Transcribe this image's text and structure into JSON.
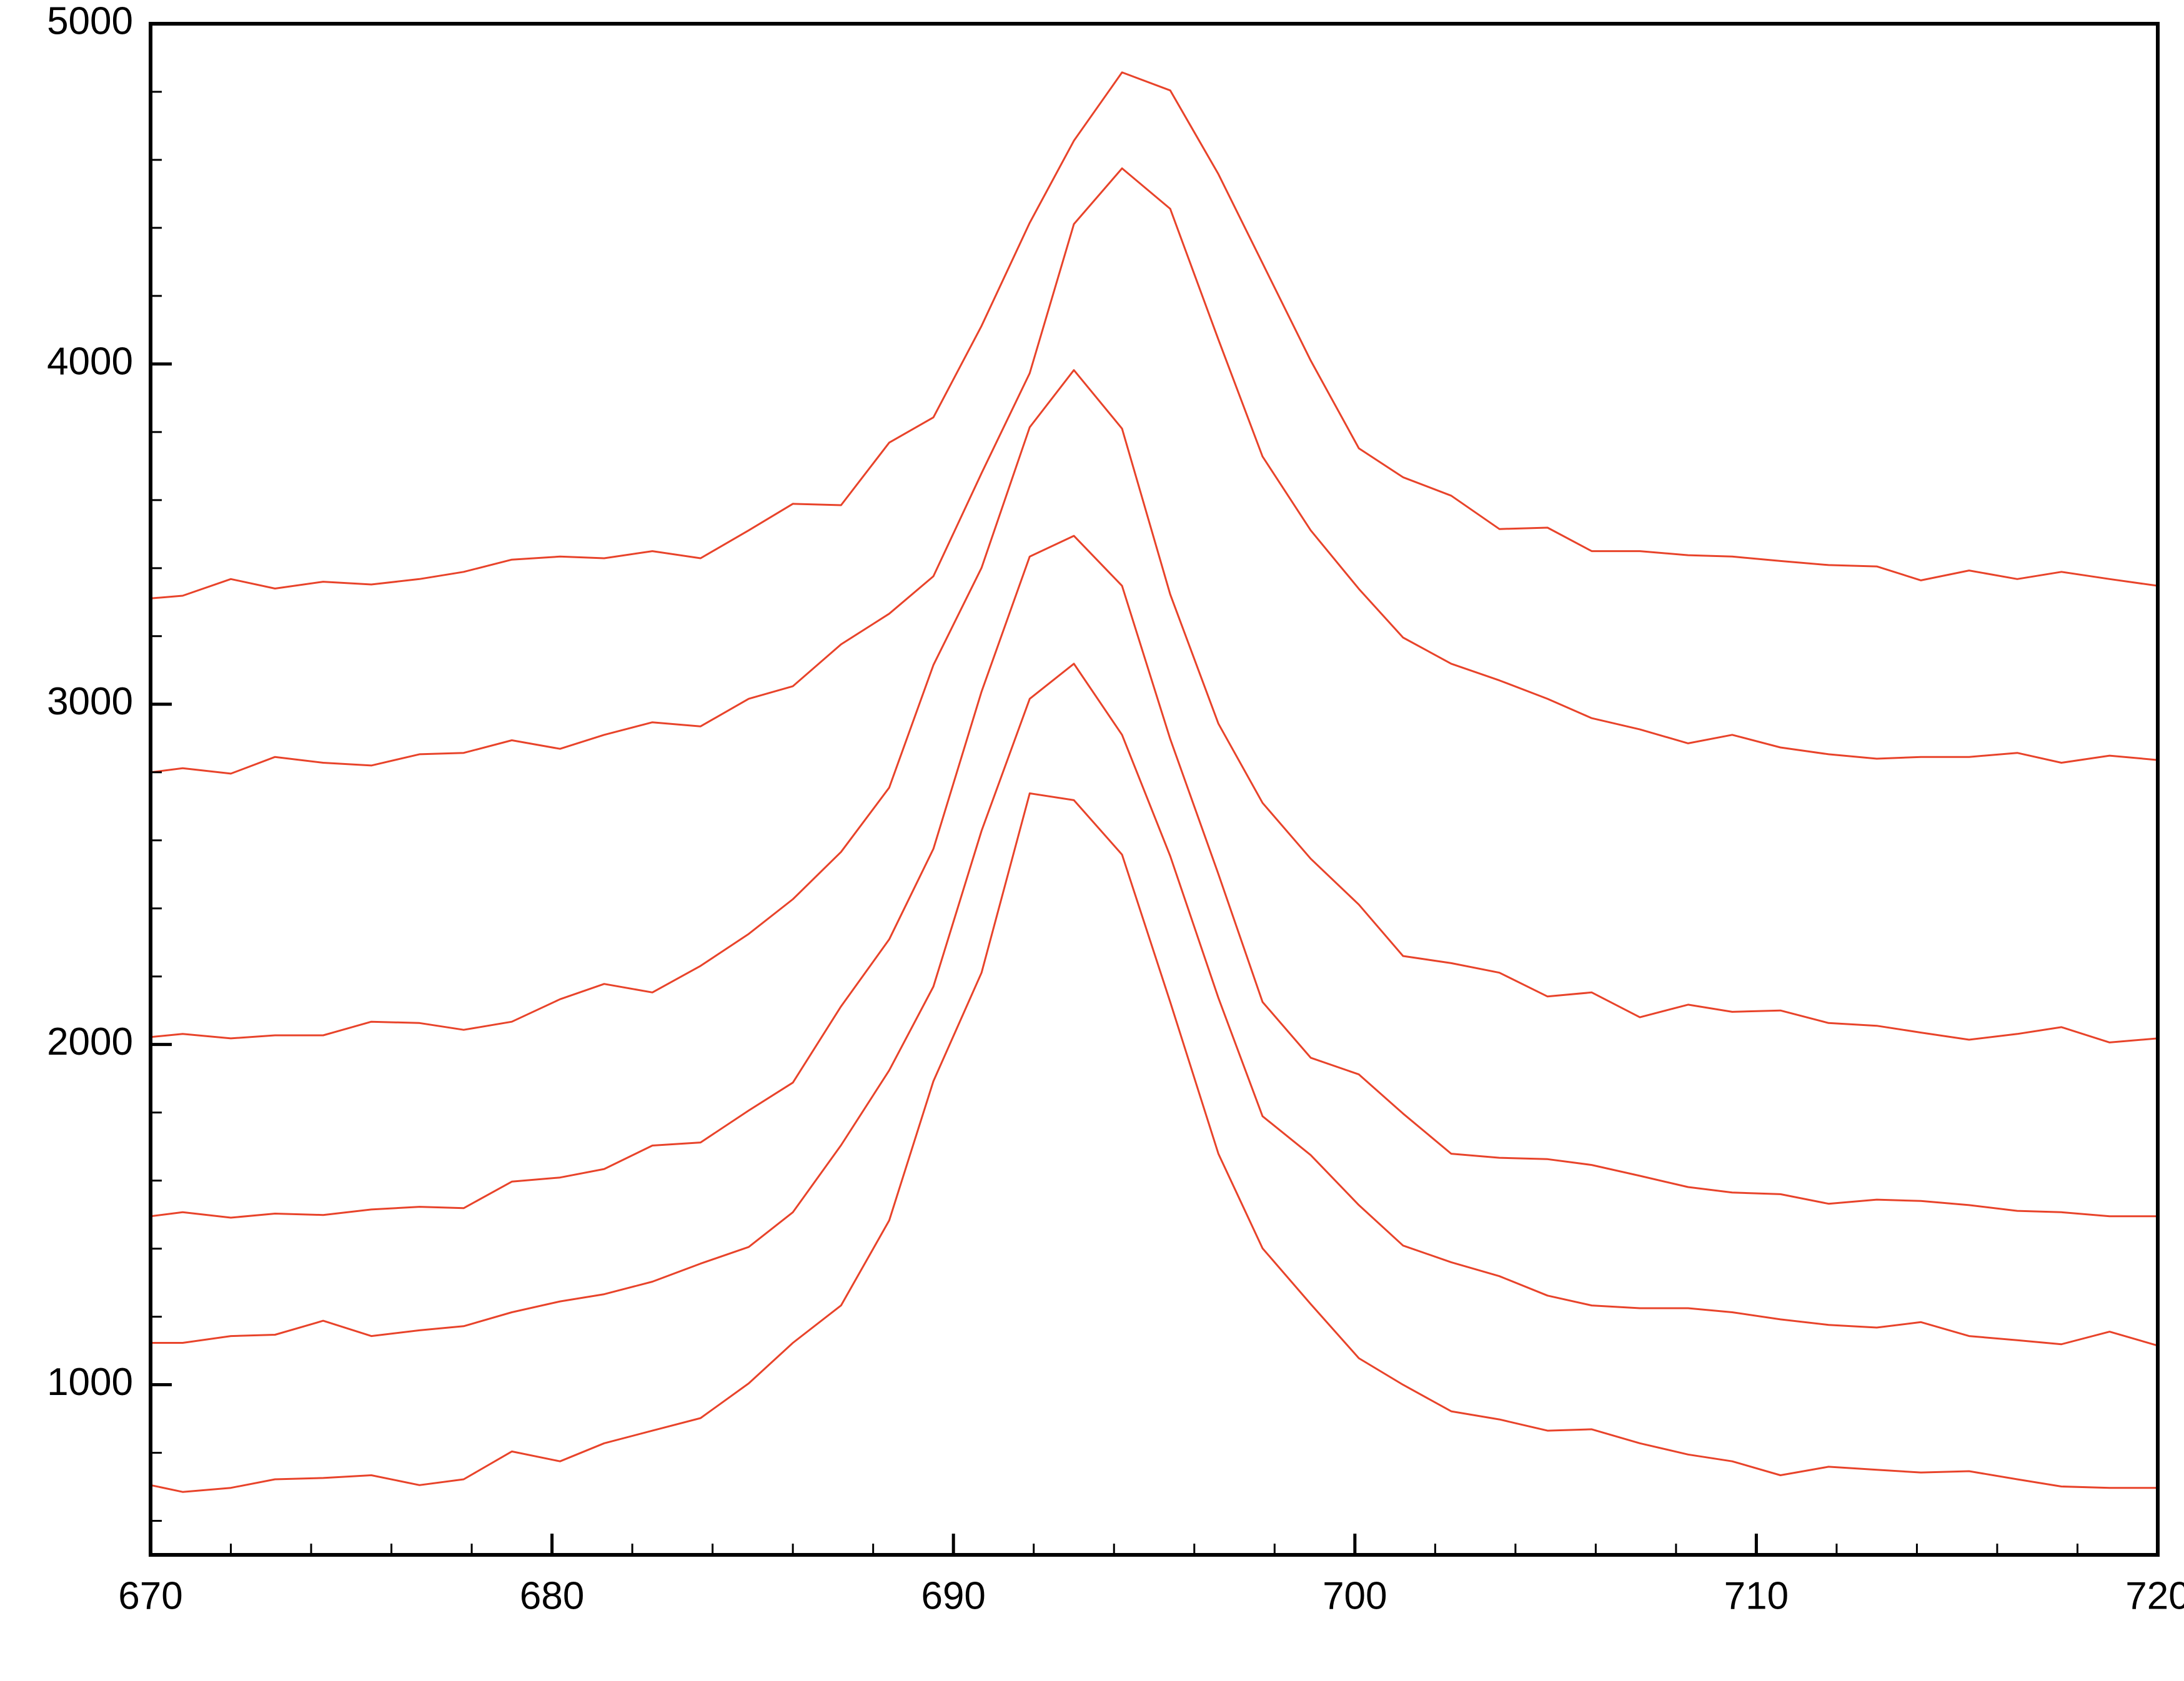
{
  "chart_data": {
    "type": "line",
    "x": [
      670,
      670.8,
      672.0,
      673.1,
      674.3,
      675.5,
      676.7,
      677.8,
      679.0,
      680.2,
      681.3,
      682.5,
      683.7,
      684.9,
      686.0,
      687.2,
      688.4,
      689.5,
      690.7,
      691.9,
      693.0,
      694.2,
      695.4,
      696.6,
      697.7,
      698.9,
      700.1,
      701.2,
      702.4,
      703.6,
      704.8,
      705.9,
      707.1,
      708.3,
      709.4,
      710.6,
      711.8,
      713.0,
      714.1,
      715.3,
      716.5,
      717.6,
      718.8,
      720
    ],
    "series": [
      {
        "color": "#e8432a",
        "values": [
          3311,
          3319,
          3368,
          3340,
          3360,
          3352,
          3368,
          3389,
          3425,
          3434,
          3429,
          3450,
          3429,
          3511,
          3589,
          3585,
          3769,
          3843,
          4112,
          4415,
          4656,
          4857,
          4804,
          4558,
          4296,
          4010,
          3752,
          3667,
          3613,
          3515,
          3519,
          3450,
          3450,
          3438,
          3434,
          3421,
          3409,
          3405,
          3364,
          3393,
          3368,
          3389,
          3368,
          3348
        ]
      },
      {
        "color": "#e8432a",
        "values": [
          2800,
          2812,
          2796,
          2845,
          2828,
          2820,
          2853,
          2857,
          2894,
          2869,
          2910,
          2947,
          2935,
          3016,
          3053,
          3176,
          3266,
          3376,
          3679,
          3973,
          4411,
          4575,
          4456,
          4072,
          3728,
          3511,
          3339,
          3196,
          3119,
          3070,
          3016,
          2959,
          2926,
          2885,
          2910,
          2873,
          2853,
          2840,
          2845,
          2845,
          2857,
          2828,
          2849,
          2836
        ]
      },
      {
        "color": "#e8432a",
        "values": [
          2022,
          2031,
          2018,
          2027,
          2027,
          2067,
          2063,
          2043,
          2067,
          2133,
          2178,
          2153,
          2231,
          2325,
          2427,
          2566,
          2755,
          3115,
          3401,
          3814,
          3982,
          3810,
          3323,
          2943,
          2710,
          2546,
          2411,
          2260,
          2239,
          2211,
          2141,
          2153,
          2080,
          2117,
          2096,
          2100,
          2063,
          2055,
          2035,
          2014,
          2031,
          2051,
          2006,
          2018
        ]
      },
      {
        "color": "#e8432a",
        "values": [
          1495,
          1507,
          1491,
          1503,
          1499,
          1515,
          1523,
          1519,
          1597,
          1609,
          1634,
          1703,
          1712,
          1806,
          1888,
          2112,
          2309,
          2575,
          3037,
          3434,
          3495,
          3348,
          2898,
          2501,
          2125,
          1961,
          1912,
          1797,
          1679,
          1667,
          1663,
          1646,
          1614,
          1581,
          1565,
          1560,
          1532,
          1544,
          1540,
          1528,
          1511,
          1507,
          1495,
          1495
        ]
      },
      {
        "color": "#e8432a",
        "values": [
          1123,
          1123,
          1143,
          1147,
          1188,
          1143,
          1160,
          1172,
          1213,
          1245,
          1266,
          1303,
          1356,
          1405,
          1507,
          1704,
          1924,
          2170,
          2628,
          3016,
          3119,
          2910,
          2554,
          2137,
          1789,
          1675,
          1528,
          1409,
          1360,
          1319,
          1262,
          1233,
          1225,
          1225,
          1213,
          1192,
          1176,
          1168,
          1184,
          1143,
          1131,
          1119,
          1156,
          1115
        ]
      },
      {
        "color": "#e8432a",
        "values": [
          705,
          685,
          697,
          722,
          726,
          734,
          705,
          722,
          804,
          775,
          828,
          865,
          902,
          1004,
          1123,
          1233,
          1483,
          1892,
          2211,
          2738,
          2718,
          2558,
          2125,
          1679,
          1401,
          1237,
          1078,
          1000,
          922,
          898,
          865,
          869,
          828,
          795,
          775,
          734,
          759,
          750,
          742,
          746,
          722,
          701,
          697,
          697
        ]
      }
    ],
    "xlim": [
      670,
      720
    ],
    "ylim": [
      500,
      5000
    ],
    "xticks": [
      670,
      680,
      690,
      700,
      710,
      720
    ],
    "yticks": [
      1000,
      2000,
      3000,
      4000,
      5000
    ],
    "xminorticks": [
      672,
      674,
      676,
      678,
      682,
      684,
      686,
      688,
      692,
      694,
      696,
      698,
      702,
      704,
      706,
      708,
      712,
      714,
      716,
      718
    ],
    "yminorticks": [
      600,
      800,
      1200,
      1400,
      1600,
      1800,
      2200,
      2400,
      2600,
      2800,
      3200,
      3400,
      3600,
      3800,
      4200,
      4400,
      4600,
      4800
    ]
  }
}
